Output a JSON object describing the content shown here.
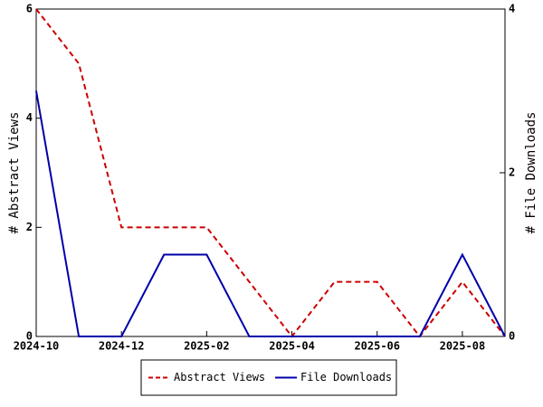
{
  "chart_data": {
    "type": "line",
    "x": [
      "2024-10",
      "2024-11",
      "2024-12",
      "2025-01",
      "2025-02",
      "2025-03",
      "2025-04",
      "2025-05",
      "2025-06",
      "2025-07",
      "2025-08",
      "2025-09"
    ],
    "xlim": [
      "2024-10",
      "2025-09"
    ],
    "xticks": [
      "2024-10",
      "2024-12",
      "2025-02",
      "2025-04",
      "2025-06",
      "2025-08"
    ],
    "ylabel": "# Abstract Views",
    "ylim": [
      0,
      6
    ],
    "yticks": [
      0,
      2,
      4,
      6
    ],
    "y2label": "# File Downloads",
    "y2lim": [
      0,
      4
    ],
    "y2ticks": [
      0,
      2,
      4
    ],
    "legend": "bottom",
    "series": [
      {
        "name": "Abstract Views",
        "color": "#cc0000",
        "dash": true,
        "values": [
          6,
          5,
          2,
          2,
          2,
          1,
          0,
          1,
          1,
          0,
          1,
          0
        ]
      },
      {
        "name": "File Downloads",
        "color": "#0000aa",
        "axis": "y2",
        "values": [
          3,
          0,
          0,
          1,
          1,
          0,
          0,
          0,
          0,
          0,
          1,
          0
        ]
      }
    ]
  }
}
